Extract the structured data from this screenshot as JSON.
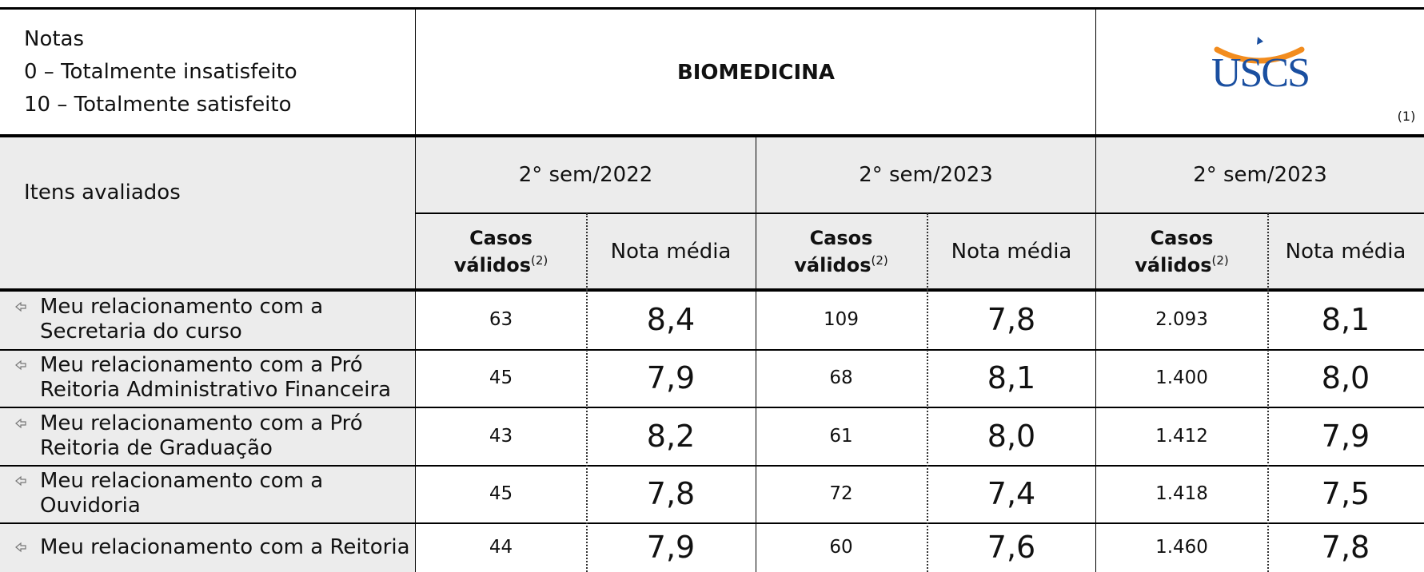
{
  "header": {
    "notes": [
      "Notas",
      "0 – Totalmente insatisfeito",
      "10 – Totalmente satisfeito"
    ],
    "title": "BIOMEDICINA",
    "logo": "USCS",
    "logo_ref": "(1)"
  },
  "table": {
    "row_header": "Itens avaliados",
    "periods": [
      "2° sem/2022",
      "2° sem/2023",
      "2° sem/2023"
    ],
    "cases_label": [
      "Casos",
      "válidos"
    ],
    "cases_ref": "(2)",
    "mean_label": "Nota média",
    "rows": [
      {
        "item": [
          "Meu relacionamento com a",
          "Secretaria do curso"
        ],
        "values": [
          "63",
          "8,4",
          "109",
          "7,8",
          "2.093",
          "8,1"
        ]
      },
      {
        "item": [
          "Meu relacionamento com a Pró",
          "Reitoria Administrativo Financeira"
        ],
        "values": [
          "45",
          "7,9",
          "68",
          "8,1",
          "1.400",
          "8,0"
        ]
      },
      {
        "item": [
          "Meu relacionamento com a Pró",
          "Reitoria de Graduação"
        ],
        "values": [
          "43",
          "8,2",
          "61",
          "8,0",
          "1.412",
          "7,9"
        ]
      },
      {
        "item": [
          "Meu relacionamento com a",
          "Ouvidoria"
        ],
        "values": [
          "45",
          "7,8",
          "72",
          "7,4",
          "1.418",
          "7,5"
        ]
      },
      {
        "item": [
          "Meu relacionamento com a Reitoria"
        ],
        "values": [
          "44",
          "7,9",
          "60",
          "7,6",
          "1.460",
          "7,8"
        ]
      }
    ]
  }
}
